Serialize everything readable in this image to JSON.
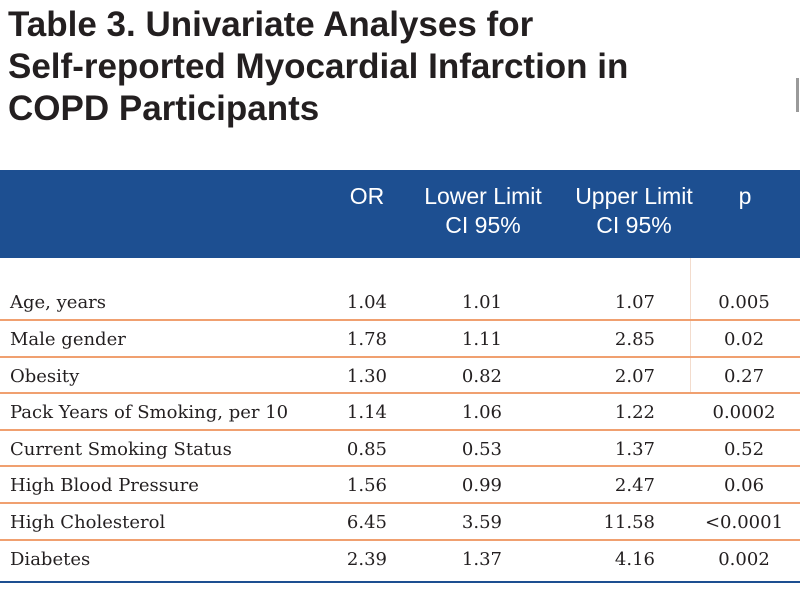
{
  "title": {
    "line1": "Table 3. Univariate Analyses for",
    "line2": "Self-reported Myocardial Infarction in",
    "line3": "COPD Participants"
  },
  "columns": {
    "or": "OR",
    "lower_line1": "Lower Limit",
    "lower_line2": "CI 95%",
    "upper_line1": "Upper Limit",
    "upper_line2": "CI 95%",
    "p": "p"
  },
  "colors": {
    "header_band": "#1d4f91",
    "row_separator": "#f0a070",
    "text": "#231f20"
  },
  "rows": [
    {
      "label": "Age, years",
      "or": "1.04",
      "lower": "1.01",
      "upper": "1.07",
      "p": "0.005"
    },
    {
      "label": "Male gender",
      "or": "1.78",
      "lower": "1.11",
      "upper": "2.85",
      "p": "0.02"
    },
    {
      "label": "Obesity",
      "or": "1.30",
      "lower": "0.82",
      "upper": "2.07",
      "p": "0.27"
    },
    {
      "label": "Pack Years of Smoking, per 10",
      "or": "1.14",
      "lower": "1.06",
      "upper": "1.22",
      "p": "0.0002"
    },
    {
      "label": "Current Smoking Status",
      "or": "0.85",
      "lower": "0.53",
      "upper": "1.37",
      "p": "0.52"
    },
    {
      "label": "High Blood Pressure",
      "or": "1.56",
      "lower": "0.99",
      "upper": "2.47",
      "p": "0.06"
    },
    {
      "label": "High Cholesterol",
      "or": "6.45",
      "lower": "3.59",
      "upper": "11.58",
      "p": "<0.0001"
    },
    {
      "label": "Diabetes",
      "or": "2.39",
      "lower": "1.37",
      "upper": "4.16",
      "p": "0.002"
    }
  ]
}
